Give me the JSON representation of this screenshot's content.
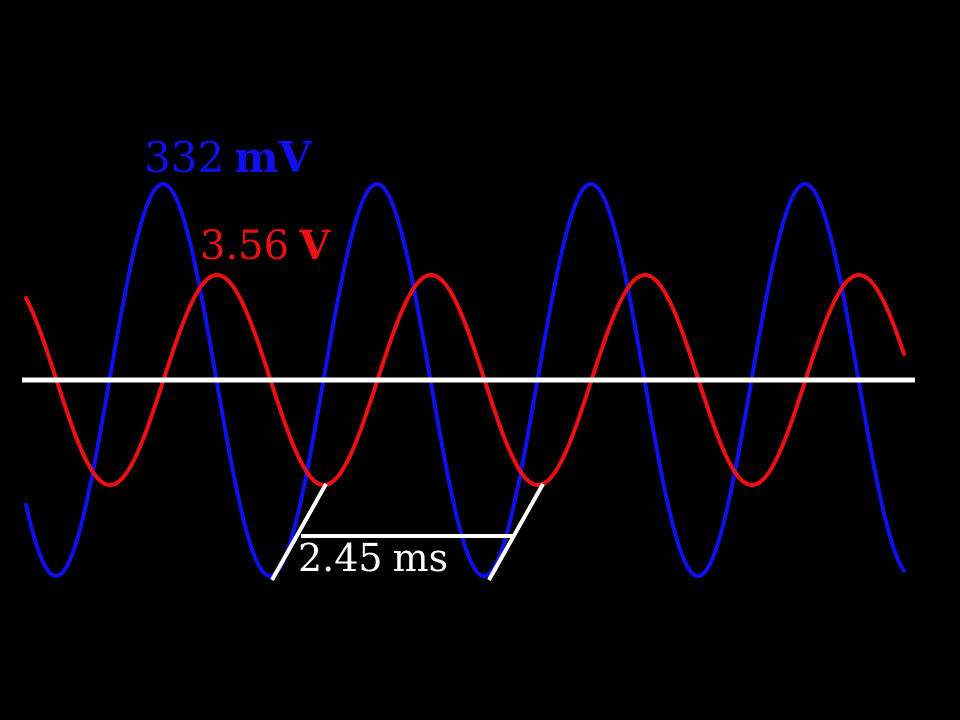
{
  "colors": {
    "background": "#000000",
    "blue_trace": "#1010ee",
    "red_trace": "#ee1010",
    "axis": "#ffffff",
    "period_marker": "#ffffff"
  },
  "blue_signal": {
    "amplitude_value": "332",
    "amplitude_unit": "mV"
  },
  "red_signal": {
    "amplitude_value": "3.56",
    "amplitude_unit": "V"
  },
  "period": {
    "value": "2.45",
    "unit": "ms"
  }
}
